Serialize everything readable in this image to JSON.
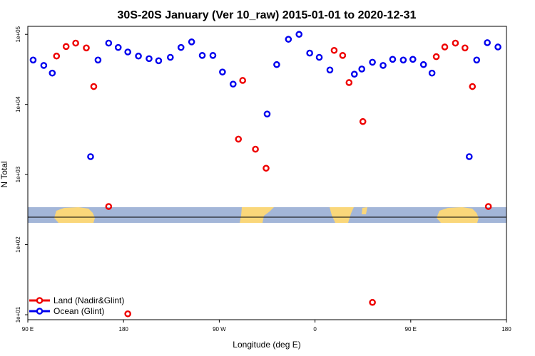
{
  "chart_data": {
    "type": "scatter",
    "title": "30S-20S January (Ver 10_raw)   2015-01-01 to 2020-12-31",
    "xlabel": "Longitude (deg E)",
    "ylabel": "N Total",
    "x_ticks": [
      {
        "value": 90,
        "label": "90 E"
      },
      {
        "value": 180,
        "label": "180"
      },
      {
        "value": 270,
        "label": "90 W"
      },
      {
        "value": 360,
        "label": "0"
      },
      {
        "value": 450,
        "label": "90 E"
      },
      {
        "value": 540,
        "label": "180"
      }
    ],
    "y_ticks": [
      {
        "value": 10,
        "label": "1e+01"
      },
      {
        "value": 100,
        "label": "1e+02"
      },
      {
        "value": 1000,
        "label": "1e+03"
      },
      {
        "value": 10000,
        "label": "1e+04"
      },
      {
        "value": 100000,
        "label": "1e+05"
      }
    ],
    "xlim": [
      90,
      540
    ],
    "ylim": [
      8.5,
      130000
    ],
    "y_scale": "log",
    "legend_position": "bottom-left",
    "series": [
      {
        "name": "Land (Nadir&Glint)",
        "color": "#ee0000",
        "points": [
          {
            "x": 117,
            "y": 49000
          },
          {
            "x": 126,
            "y": 67000
          },
          {
            "x": 135,
            "y": 75000
          },
          {
            "x": 145,
            "y": 64000
          },
          {
            "x": 152,
            "y": 18000
          },
          {
            "x": 166,
            "y": 350
          },
          {
            "x": 184,
            "y": 10.3
          },
          {
            "x": 288,
            "y": 3200
          },
          {
            "x": 292,
            "y": 22000
          },
          {
            "x": 304,
            "y": 2300
          },
          {
            "x": 314,
            "y": 1230
          },
          {
            "x": 378,
            "y": 59000
          },
          {
            "x": 386,
            "y": 50000
          },
          {
            "x": 392,
            "y": 20500
          },
          {
            "x": 405,
            "y": 5700
          },
          {
            "x": 414,
            "y": 15
          },
          {
            "x": 474,
            "y": 48000
          },
          {
            "x": 482,
            "y": 66000
          },
          {
            "x": 492,
            "y": 75000
          },
          {
            "x": 501,
            "y": 64000
          },
          {
            "x": 508,
            "y": 18000
          },
          {
            "x": 523,
            "y": 350
          }
        ]
      },
      {
        "name": "Ocean (Glint)",
        "color": "#0000ee",
        "points": [
          {
            "x": 95,
            "y": 43000
          },
          {
            "x": 105,
            "y": 36000
          },
          {
            "x": 113,
            "y": 28000
          },
          {
            "x": 149,
            "y": 1800
          },
          {
            "x": 156,
            "y": 43000
          },
          {
            "x": 166,
            "y": 75000
          },
          {
            "x": 175,
            "y": 65000
          },
          {
            "x": 184,
            "y": 56000
          },
          {
            "x": 194,
            "y": 49000
          },
          {
            "x": 204,
            "y": 45000
          },
          {
            "x": 213,
            "y": 42000
          },
          {
            "x": 224,
            "y": 47000
          },
          {
            "x": 234,
            "y": 65000
          },
          {
            "x": 244,
            "y": 78000
          },
          {
            "x": 254,
            "y": 50000
          },
          {
            "x": 264,
            "y": 50000
          },
          {
            "x": 273,
            "y": 29000
          },
          {
            "x": 283,
            "y": 19500
          },
          {
            "x": 315,
            "y": 7300
          },
          {
            "x": 324,
            "y": 37000
          },
          {
            "x": 335,
            "y": 85000
          },
          {
            "x": 345,
            "y": 100000
          },
          {
            "x": 355,
            "y": 54000
          },
          {
            "x": 364,
            "y": 47000
          },
          {
            "x": 374,
            "y": 31000
          },
          {
            "x": 397,
            "y": 27000
          },
          {
            "x": 404,
            "y": 32000
          },
          {
            "x": 414,
            "y": 40000
          },
          {
            "x": 424,
            "y": 36000
          },
          {
            "x": 433,
            "y": 44000
          },
          {
            "x": 443,
            "y": 43000
          },
          {
            "x": 452,
            "y": 44000
          },
          {
            "x": 462,
            "y": 37000
          },
          {
            "x": 470,
            "y": 28000
          },
          {
            "x": 505,
            "y": 1800
          },
          {
            "x": 512,
            "y": 43000
          },
          {
            "x": 522,
            "y": 76000
          },
          {
            "x": 532,
            "y": 66000
          }
        ]
      }
    ]
  }
}
